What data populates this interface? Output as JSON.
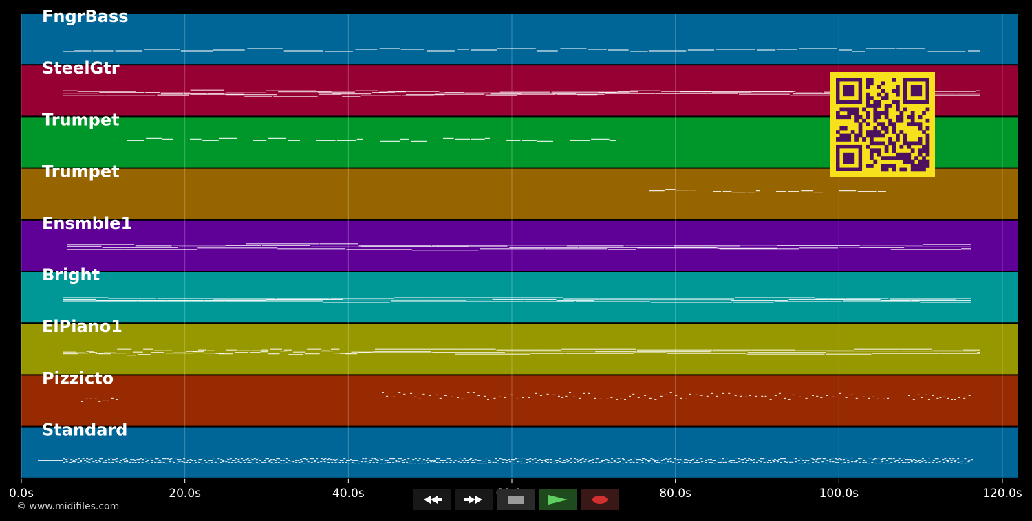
{
  "timeline": {
    "tracks": [
      {
        "name": "FngrBass",
        "color": "#006597"
      },
      {
        "name": "SteelGtr",
        "color": "#970032"
      },
      {
        "name": "Trumpet",
        "color": "#00972a"
      },
      {
        "name": "Trumpet",
        "color": "#976500"
      },
      {
        "name": "Ensmble1",
        "color": "#5f0097"
      },
      {
        "name": "Bright",
        "color": "#009797"
      },
      {
        "name": "ElPiano1",
        "color": "#979700"
      },
      {
        "name": "Pizzicto",
        "color": "#972a00"
      },
      {
        "name": "Standard",
        "color": "#006597"
      }
    ],
    "ticks": [
      "0.0s",
      "20.0s",
      "40.0s",
      "60.0s",
      "80.0s",
      "100.0s",
      "120.0s"
    ],
    "tick_values": [
      0,
      20,
      40,
      60,
      80,
      100,
      120
    ]
  },
  "footer": {
    "copyright": "© www.midifiles.com"
  },
  "transport": {
    "rewind_icon": "rewind-icon",
    "forward_icon": "fast-forward-icon",
    "stop_icon": "stop-icon",
    "play_icon": "play-icon",
    "record_icon": "record-icon"
  },
  "qr_code": {
    "background": "#f7e11d",
    "foreground": "#4b1160"
  }
}
